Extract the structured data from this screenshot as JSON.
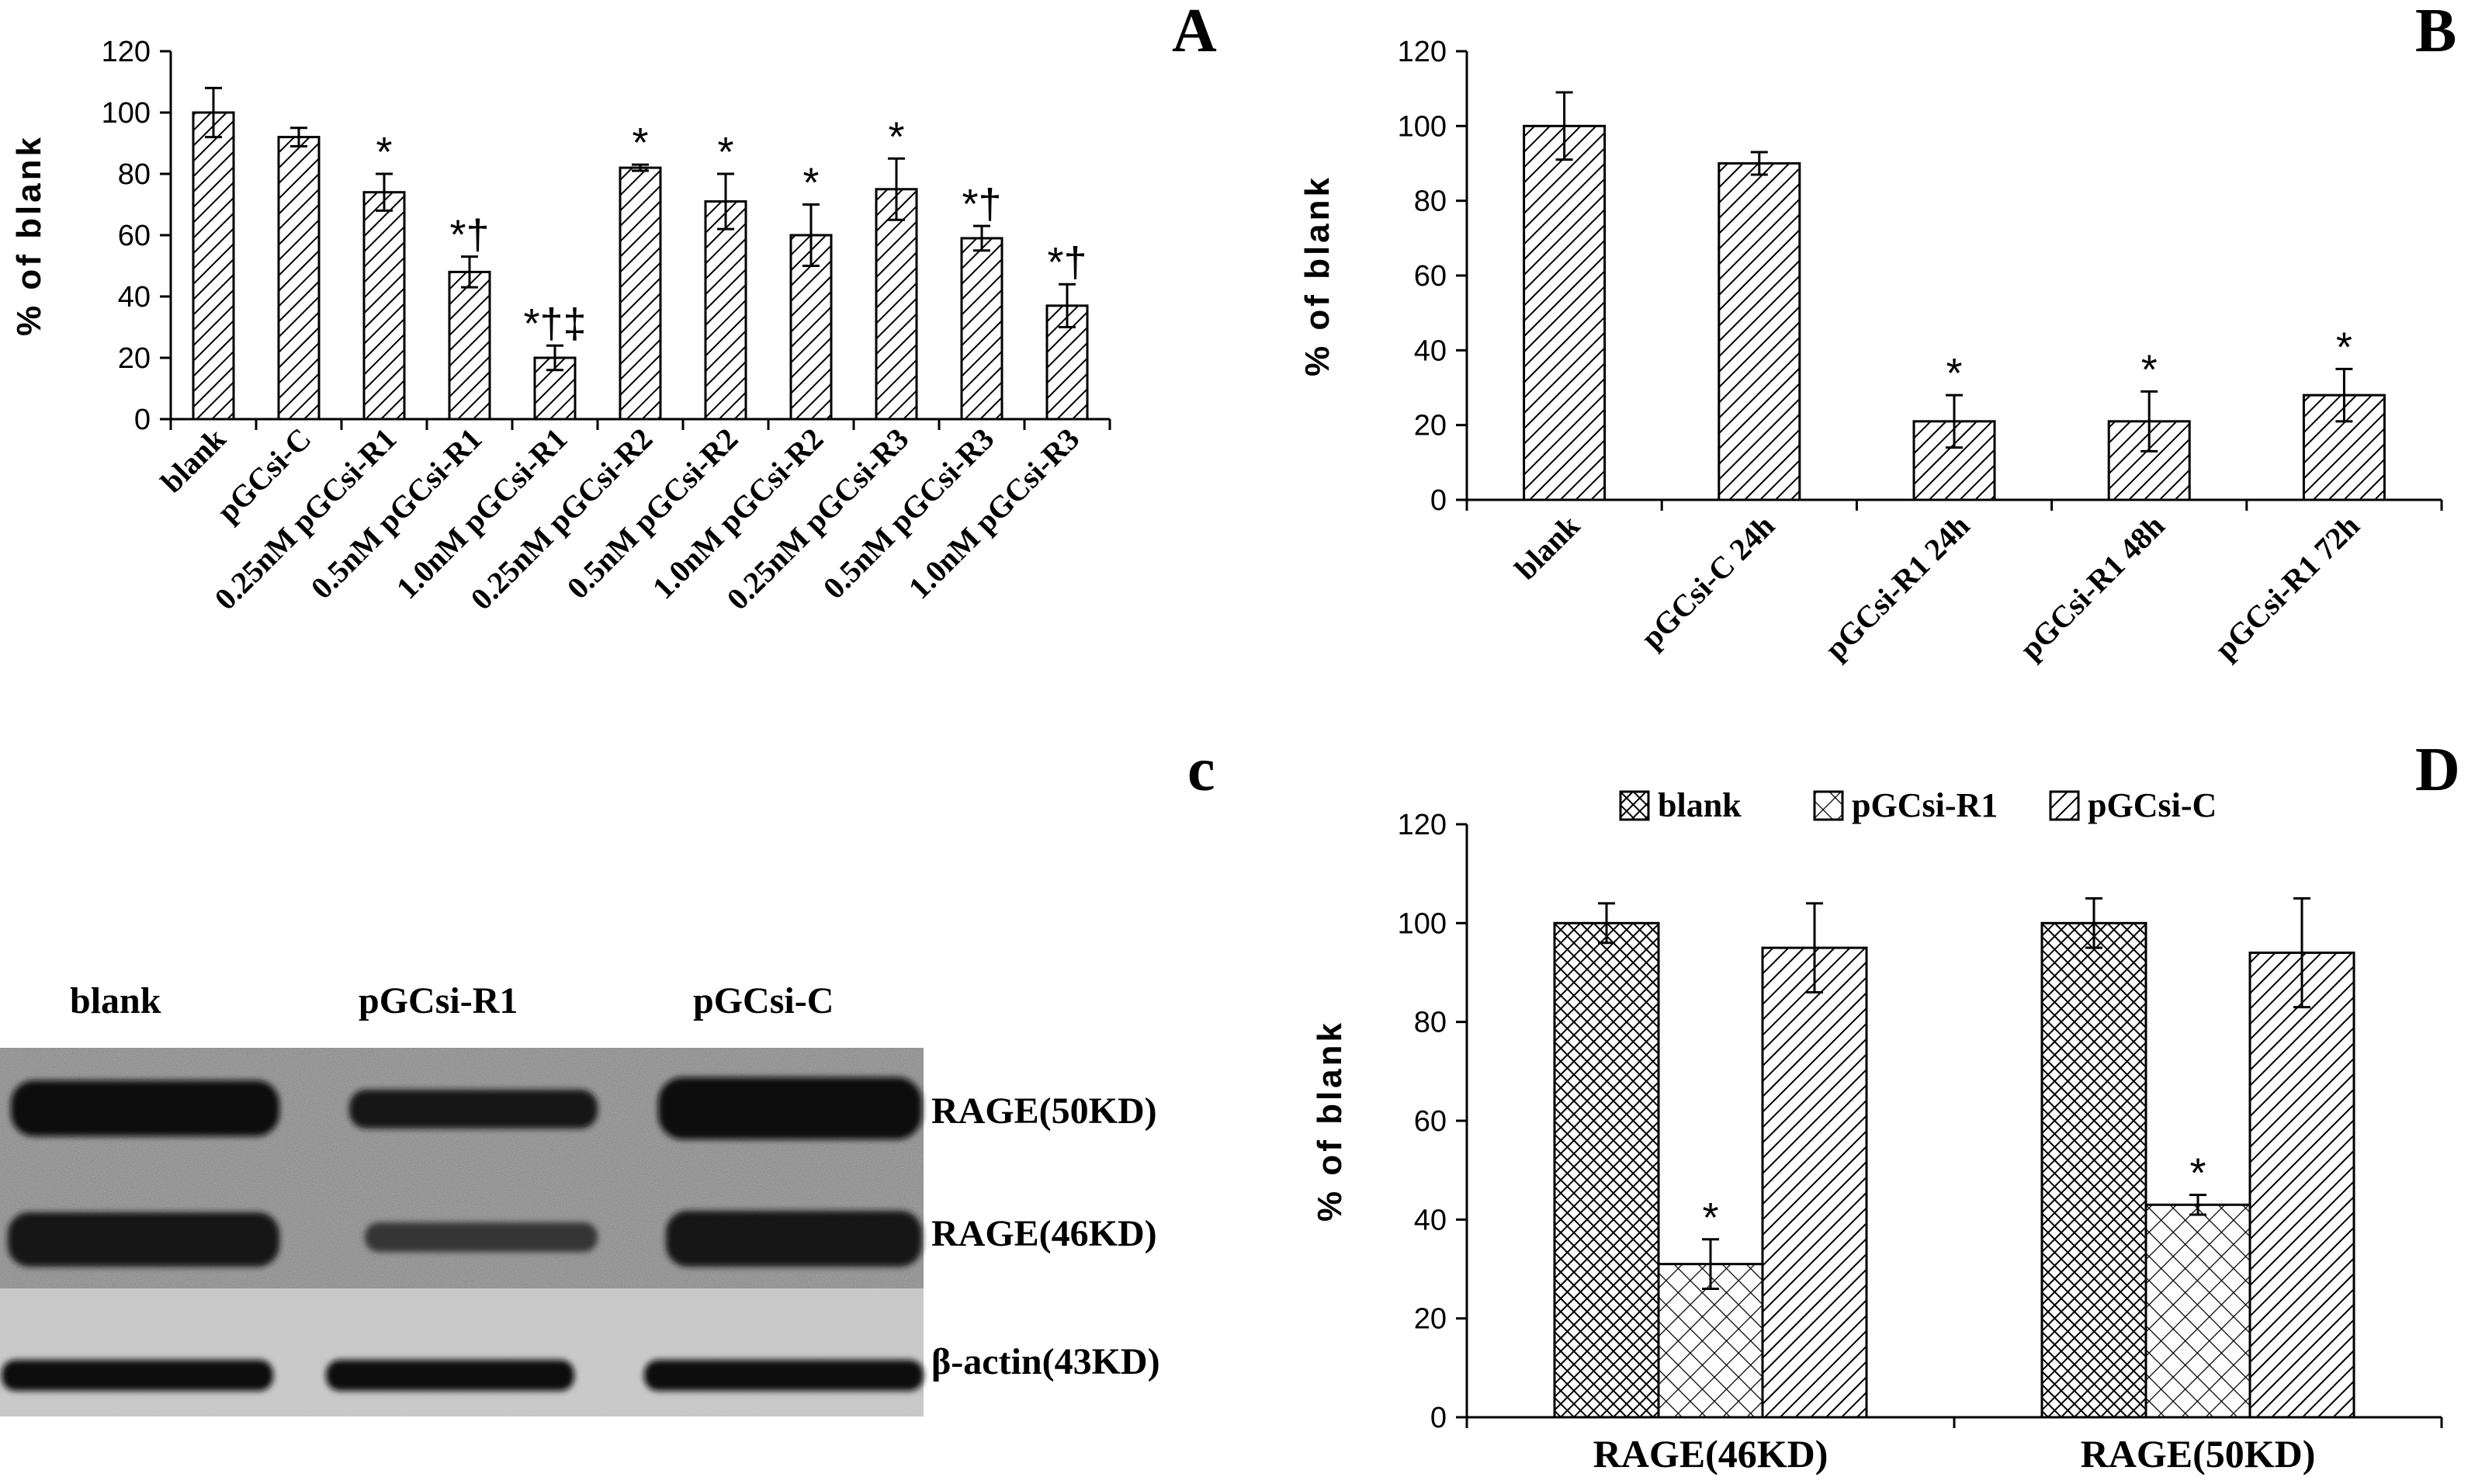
{
  "chart_data": [
    {
      "panel": "A",
      "type": "bar",
      "ylabel": "% of blank",
      "ylim": [
        0,
        120
      ],
      "yticks": [
        "0",
        "20",
        "40",
        "60",
        "80",
        "100",
        "120"
      ],
      "categories": [
        "blank",
        "pGCsi-C",
        "0.25nM pGCsi-R1",
        "0.5nM pGCsi-R1",
        "1.0nM pGCsi-R1",
        "0.25nM pGCsi-R2",
        "0.5nM pGCsi-R2",
        "1.0nM pGCsi-R2",
        "0.25nM pGCsi-R3",
        "0.5nM pGCsi-R3",
        "1.0nM pGCsi-R3"
      ],
      "values": [
        100,
        92,
        74,
        48,
        20,
        82,
        71,
        60,
        75,
        59,
        37
      ],
      "errors": [
        8,
        3,
        6,
        5,
        4,
        1,
        9,
        10,
        10,
        4,
        7
      ],
      "annotations": [
        "",
        "",
        "*",
        "*†",
        "*†‡",
        "*",
        "*",
        "*",
        "*",
        "*†",
        "*†"
      ]
    },
    {
      "panel": "B",
      "type": "bar",
      "ylabel": "% of blank",
      "ylim": [
        0,
        120
      ],
      "yticks": [
        "0",
        "20",
        "40",
        "60",
        "80",
        "100",
        "120"
      ],
      "categories": [
        "blank",
        "pGCsi-C 24h",
        "pGCsi-R1 24h",
        "pGCsi-R1 48h",
        "pGCsi-R1 72h"
      ],
      "values": [
        100,
        90,
        21,
        21,
        28
      ],
      "errors": [
        9,
        3,
        7,
        8,
        7
      ],
      "annotations": [
        "",
        "",
        "*",
        "*",
        "*"
      ]
    },
    {
      "panel": "D",
      "type": "bar",
      "ylabel": "% of blank",
      "ylim": [
        0,
        120
      ],
      "yticks": [
        "0",
        "20",
        "40",
        "60",
        "80",
        "100",
        "120"
      ],
      "categories": [
        "RAGE(46KD)",
        "RAGE(50KD)"
      ],
      "series": [
        {
          "name": "blank",
          "values": [
            100,
            100
          ],
          "errors": [
            4,
            5
          ],
          "annotations": [
            "",
            ""
          ]
        },
        {
          "name": "pGCsi-R1",
          "values": [
            31,
            43
          ],
          "errors": [
            5,
            2
          ],
          "annotations": [
            "*",
            "*"
          ]
        },
        {
          "name": "pGCsi-C",
          "values": [
            95,
            94
          ],
          "errors": [
            9,
            11
          ],
          "annotations": [
            "",
            ""
          ]
        }
      ],
      "legend": "top"
    }
  ],
  "panels": {
    "a": "A",
    "b": "B",
    "c": "c",
    "d": "D"
  },
  "blot": {
    "lanes": [
      "blank",
      "pGCsi-R1",
      "pGCsi-C"
    ],
    "bands": [
      "RAGE(50KD)",
      "RAGE(46KD)",
      "β-actin(43KD)"
    ]
  }
}
